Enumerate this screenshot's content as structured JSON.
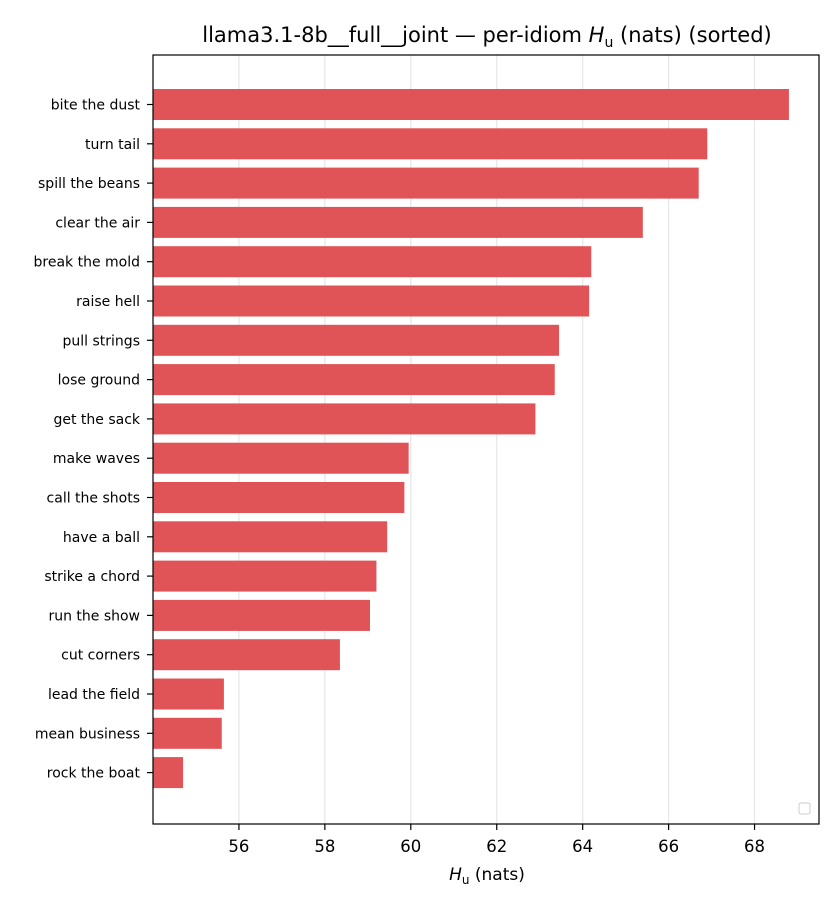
{
  "chart_data": {
    "type": "bar",
    "orientation": "horizontal",
    "title": {
      "prefix": "llama3.1-8b__full__joint — per-idiom ",
      "symbol": "H",
      "subscript": "u",
      "suffix": " (nats) (sorted)"
    },
    "xlabel": {
      "symbol": "H",
      "subscript": "u",
      "suffix": " (nats)"
    },
    "categories": [
      "bite the dust",
      "turn tail",
      "spill the beans",
      "clear the air",
      "break the mold",
      "raise hell",
      "pull strings",
      "lose ground",
      "get the sack",
      "make waves",
      "call the shots",
      "have a ball",
      "strike a chord",
      "run the show",
      "cut corners",
      "lead the field",
      "mean business",
      "rock the boat"
    ],
    "values": [
      68.8,
      66.9,
      66.7,
      65.4,
      64.2,
      64.15,
      63.45,
      63.35,
      62.9,
      59.95,
      59.85,
      59.45,
      59.2,
      59.05,
      58.35,
      55.65,
      55.6,
      54.7
    ],
    "xlim": [
      54.0,
      69.5
    ],
    "xticks": [
      56,
      58,
      60,
      62,
      64,
      66,
      68
    ],
    "grid": true,
    "legend_position": "lower-right",
    "bar_color": "#e05356"
  }
}
